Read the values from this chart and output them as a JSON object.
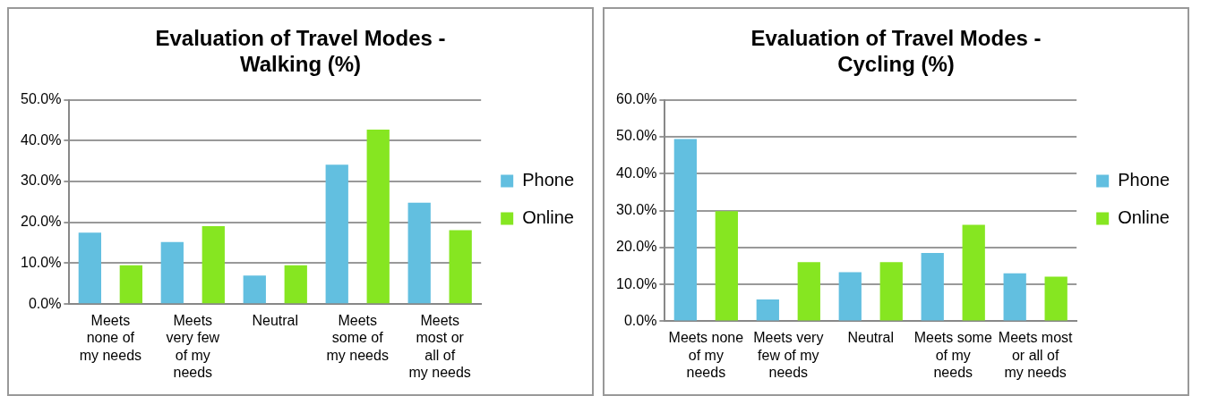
{
  "chart_data": [
    {
      "type": "bar",
      "title": "Evaluation of Travel Modes - Walking (%)",
      "categories": [
        "Meets none of my needs",
        "Meets very few of my needs",
        "Neutral",
        "Meets some of my needs",
        "Meets most or all of my needs"
      ],
      "series": [
        {
          "name": "Phone",
          "color": "#62bfe0",
          "values": [
            17.5,
            15.2,
            7.0,
            34.1,
            24.8
          ]
        },
        {
          "name": "Online",
          "color": "#86e621",
          "values": [
            9.5,
            19.1,
            9.5,
            42.7,
            18.1
          ]
        }
      ],
      "ylim": [
        0,
        50
      ],
      "yticks": [
        {
          "value": 0,
          "label": "0.0%"
        },
        {
          "value": 10,
          "label": "10.0%"
        },
        {
          "value": 20,
          "label": "20.0%"
        },
        {
          "value": 30,
          "label": "30.0%"
        },
        {
          "value": 40,
          "label": "40.0%"
        },
        {
          "value": 50,
          "label": "50.0%"
        }
      ],
      "grid": "y",
      "legend": "right"
    },
    {
      "type": "bar",
      "title": "Evaluation of Travel Modes - Cycling (%)",
      "categories": [
        "Meets none of my needs",
        "Meets very few of my needs",
        "Neutral",
        "Meets some of my needs",
        "Meets most or all of my needs"
      ],
      "series": [
        {
          "name": "Phone",
          "color": "#62bfe0",
          "values": [
            49.4,
            5.9,
            13.3,
            18.5,
            13.0
          ]
        },
        {
          "name": "Online",
          "color": "#86e621",
          "values": [
            29.8,
            16.0,
            16.0,
            26.1,
            12.1
          ]
        }
      ],
      "ylim": [
        0,
        60
      ],
      "yticks": [
        {
          "value": 0,
          "label": "0.0%"
        },
        {
          "value": 10,
          "label": "10.0%"
        },
        {
          "value": 20,
          "label": "20.0%"
        },
        {
          "value": 30,
          "label": "30.0%"
        },
        {
          "value": 40,
          "label": "40.0%"
        },
        {
          "value": 50,
          "label": "50.0%"
        },
        {
          "value": 60,
          "label": "60.0%"
        }
      ],
      "grid": "y",
      "legend": "right"
    }
  ]
}
